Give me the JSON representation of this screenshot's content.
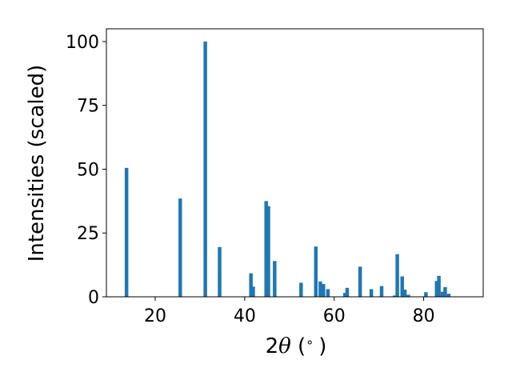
{
  "chart_data": {
    "type": "bar",
    "xlabel_prefix": "2",
    "xlabel_theta": "θ",
    "xlabel_suffix": " (",
    "xlabel_degree": "∘",
    "xlabel_close": ")",
    "ylabel": "Intensities (scaled)",
    "xlim": [
      9.1,
      93.3
    ],
    "ylim": [
      0,
      105
    ],
    "xticks": [
      20,
      40,
      60,
      80
    ],
    "yticks": [
      0,
      25,
      50,
      75,
      100
    ],
    "bar_width_deg": 0.8,
    "bar_color": "#1f77b4",
    "grid": false,
    "legend": "none",
    "x": [
      13.6,
      25.6,
      31.2,
      34.4,
      41.4,
      41.9,
      44.8,
      45.3,
      46.7,
      52.6,
      55.9,
      56.9,
      57.6,
      58.6,
      62.4,
      62.9,
      65.8,
      68.3,
      70.6,
      73.5,
      74.1,
      75.2,
      75.8,
      76.6,
      80.5,
      82.9,
      83.4,
      84.2,
      84.8,
      85.6
    ],
    "y": [
      50.5,
      38.5,
      100,
      19.5,
      9.2,
      4.0,
      37.5,
      35.5,
      14.0,
      5.5,
      19.7,
      6.0,
      5.0,
      3.0,
      1.5,
      3.5,
      11.8,
      3.0,
      4.2,
      0.5,
      16.7,
      8.0,
      2.8,
      0.8,
      1.8,
      6.2,
      8.2,
      2.0,
      3.8,
      1.2
    ]
  }
}
